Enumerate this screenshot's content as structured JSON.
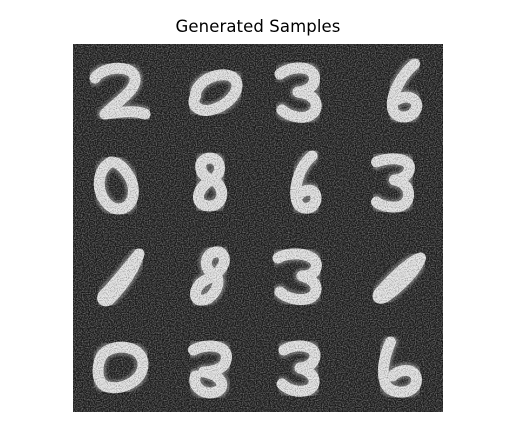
{
  "figure": {
    "title": "Generated Samples"
  },
  "grid": {
    "rows": 4,
    "cols": 4,
    "background_color": "#1a1a1a",
    "digit_color": "#e8e8e8",
    "noise": true,
    "samples": [
      {
        "row": 0,
        "col": 0,
        "digit": "2"
      },
      {
        "row": 0,
        "col": 1,
        "digit": "0"
      },
      {
        "row": 0,
        "col": 2,
        "digit": "3"
      },
      {
        "row": 0,
        "col": 3,
        "digit": "6"
      },
      {
        "row": 1,
        "col": 0,
        "digit": "0"
      },
      {
        "row": 1,
        "col": 1,
        "digit": "8"
      },
      {
        "row": 1,
        "col": 2,
        "digit": "6"
      },
      {
        "row": 1,
        "col": 3,
        "digit": "3"
      },
      {
        "row": 2,
        "col": 0,
        "digit": "1"
      },
      {
        "row": 2,
        "col": 1,
        "digit": "8"
      },
      {
        "row": 2,
        "col": 2,
        "digit": "3"
      },
      {
        "row": 2,
        "col": 3,
        "digit": "1"
      },
      {
        "row": 3,
        "col": 0,
        "digit": "0"
      },
      {
        "row": 3,
        "col": 1,
        "digit": "8"
      },
      {
        "row": 3,
        "col": 2,
        "digit": "3"
      },
      {
        "row": 3,
        "col": 3,
        "digit": "6"
      }
    ]
  }
}
